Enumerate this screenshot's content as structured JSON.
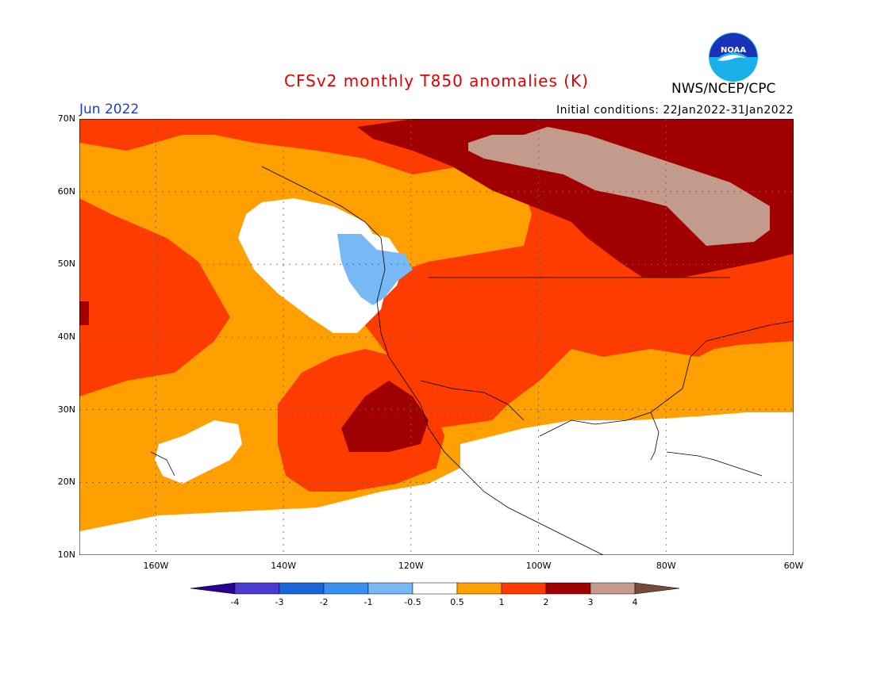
{
  "title": "CFSv2 monthly T850 anomalies (K)",
  "month": "Jun 2022",
  "initial_conditions": "Initial conditions: 22Jan2022-31Jan2022",
  "agency": "NWS/NCEP/CPC",
  "logo_text": "NOAA",
  "map": {
    "lon_range": [
      -172,
      -60
    ],
    "lat_range": [
      10,
      70
    ],
    "y_ticks": [
      "70N",
      "60N",
      "50N",
      "40N",
      "30N",
      "20N",
      "10N"
    ],
    "x_ticks": [
      "160W",
      "140W",
      "120W",
      "100W",
      "80W",
      "60W"
    ]
  },
  "colorbar": {
    "labels": [
      "-4",
      "-3",
      "-2",
      "-1",
      "-0.5",
      "0.5",
      "1",
      "2",
      "3",
      "4"
    ],
    "colors": [
      "#2a0090",
      "#4a3ad0",
      "#1a66d8",
      "#3a90ee",
      "#78b8f4",
      "#ffffff",
      "#ffa000",
      "#ff3c00",
      "#a00000",
      "#c39a8c",
      "#7a4a38"
    ]
  },
  "palette": {
    "white": "#ffffff",
    "lt_blue": "#78b8f4",
    "orange": "#ffa000",
    "red_orange": "#ff3c00",
    "dark_red": "#a00000",
    "tan": "#c39a8c"
  }
}
